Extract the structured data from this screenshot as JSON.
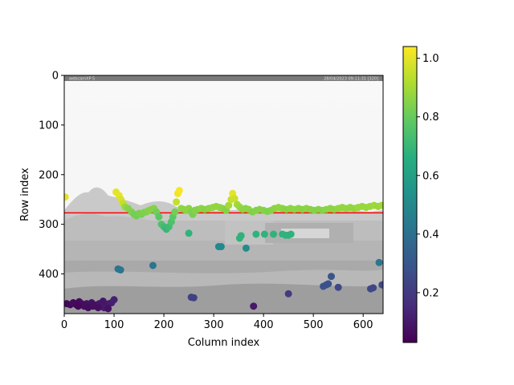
{
  "chart_data": {
    "type": "scatter",
    "xlabel": "Column index",
    "ylabel": "Row index",
    "xlim": [
      0,
      640
    ],
    "ylim": [
      480,
      0
    ],
    "x_ticks": [
      0,
      100,
      200,
      300,
      400,
      500,
      600
    ],
    "y_ticks": [
      0,
      100,
      200,
      300,
      400
    ],
    "colorbar": {
      "min": 0.03,
      "max": 1.04,
      "ticks": [
        0.2,
        0.4,
        0.6,
        0.8,
        1.0
      ],
      "colormap": "viridis"
    },
    "horizontal_line": {
      "y": 277,
      "color": "#ff0000"
    },
    "background_image": {
      "top_left_text": "webcamXP 5",
      "top_right_text": "28/04/2023 09:11:31  [320]"
    },
    "points": [
      [
        2,
        245,
        1.0
      ],
      [
        104,
        235,
        1.0
      ],
      [
        110,
        242,
        1.0
      ],
      [
        114,
        250,
        0.98
      ],
      [
        118,
        258,
        0.95
      ],
      [
        122,
        265,
        0.88
      ],
      [
        128,
        268,
        0.85
      ],
      [
        135,
        275,
        0.84
      ],
      [
        140,
        280,
        0.82
      ],
      [
        145,
        283,
        0.82
      ],
      [
        150,
        278,
        0.83
      ],
      [
        155,
        280,
        0.83
      ],
      [
        160,
        276,
        0.84
      ],
      [
        165,
        275,
        0.84
      ],
      [
        170,
        272,
        0.85
      ],
      [
        175,
        270,
        0.85
      ],
      [
        180,
        268,
        0.85
      ],
      [
        185,
        275,
        0.82
      ],
      [
        190,
        285,
        0.78
      ],
      [
        195,
        300,
        0.75
      ],
      [
        200,
        305,
        0.72
      ],
      [
        205,
        310,
        0.7
      ],
      [
        210,
        305,
        0.72
      ],
      [
        215,
        295,
        0.75
      ],
      [
        218,
        285,
        0.78
      ],
      [
        222,
        275,
        0.82
      ],
      [
        225,
        255,
        0.95
      ],
      [
        228,
        238,
        1.02
      ],
      [
        231,
        232,
        1.03
      ],
      [
        235,
        268,
        0.87
      ],
      [
        240,
        270,
        0.86
      ],
      [
        245,
        272,
        0.86
      ],
      [
        250,
        268,
        0.86
      ],
      [
        255,
        275,
        0.84
      ],
      [
        258,
        280,
        0.83
      ],
      [
        262,
        272,
        0.85
      ],
      [
        268,
        270,
        0.85
      ],
      [
        275,
        268,
        0.86
      ],
      [
        282,
        270,
        0.85
      ],
      [
        290,
        268,
        0.86
      ],
      [
        298,
        266,
        0.87
      ],
      [
        305,
        264,
        0.87
      ],
      [
        312,
        266,
        0.87
      ],
      [
        318,
        268,
        0.86
      ],
      [
        325,
        272,
        0.85
      ],
      [
        330,
        262,
        0.9
      ],
      [
        335,
        250,
        0.95
      ],
      [
        338,
        238,
        1.0
      ],
      [
        342,
        248,
        0.96
      ],
      [
        347,
        260,
        0.9
      ],
      [
        352,
        265,
        0.88
      ],
      [
        358,
        270,
        0.86
      ],
      [
        364,
        268,
        0.86
      ],
      [
        370,
        270,
        0.86
      ],
      [
        378,
        275,
        0.84
      ],
      [
        385,
        272,
        0.85
      ],
      [
        392,
        270,
        0.85
      ],
      [
        400,
        272,
        0.85
      ],
      [
        408,
        274,
        0.84
      ],
      [
        415,
        272,
        0.85
      ],
      [
        422,
        268,
        0.86
      ],
      [
        430,
        266,
        0.87
      ],
      [
        438,
        268,
        0.86
      ],
      [
        446,
        270,
        0.85
      ],
      [
        454,
        268,
        0.86
      ],
      [
        462,
        270,
        0.86
      ],
      [
        470,
        268,
        0.86
      ],
      [
        478,
        270,
        0.85
      ],
      [
        486,
        268,
        0.86
      ],
      [
        494,
        270,
        0.85
      ],
      [
        502,
        272,
        0.85
      ],
      [
        510,
        270,
        0.85
      ],
      [
        518,
        272,
        0.85
      ],
      [
        526,
        270,
        0.86
      ],
      [
        534,
        268,
        0.86
      ],
      [
        542,
        270,
        0.86
      ],
      [
        550,
        268,
        0.87
      ],
      [
        558,
        266,
        0.87
      ],
      [
        566,
        268,
        0.87
      ],
      [
        574,
        266,
        0.87
      ],
      [
        582,
        268,
        0.87
      ],
      [
        590,
        266,
        0.88
      ],
      [
        598,
        264,
        0.88
      ],
      [
        606,
        266,
        0.88
      ],
      [
        614,
        264,
        0.88
      ],
      [
        622,
        262,
        0.89
      ],
      [
        630,
        264,
        0.88
      ],
      [
        637,
        262,
        0.89
      ],
      [
        250,
        318,
        0.68
      ],
      [
        352,
        328,
        0.68
      ],
      [
        355,
        323,
        0.68
      ],
      [
        385,
        320,
        0.68
      ],
      [
        402,
        320,
        0.68
      ],
      [
        420,
        320,
        0.68
      ],
      [
        438,
        320,
        0.68
      ],
      [
        444,
        322,
        0.68
      ],
      [
        450,
        322,
        0.68
      ],
      [
        455,
        320,
        0.68
      ],
      [
        310,
        345,
        0.5
      ],
      [
        315,
        345,
        0.5
      ],
      [
        365,
        348,
        0.52
      ],
      [
        108,
        390,
        0.42
      ],
      [
        113,
        392,
        0.42
      ],
      [
        178,
        383,
        0.42
      ],
      [
        632,
        377,
        0.42
      ],
      [
        255,
        447,
        0.22
      ],
      [
        260,
        448,
        0.22
      ],
      [
        380,
        465,
        0.1
      ],
      [
        450,
        440,
        0.2
      ],
      [
        520,
        425,
        0.28
      ],
      [
        526,
        422,
        0.28
      ],
      [
        530,
        420,
        0.28
      ],
      [
        536,
        405,
        0.3
      ],
      [
        550,
        427,
        0.25
      ],
      [
        615,
        430,
        0.25
      ],
      [
        620,
        428,
        0.25
      ],
      [
        638,
        422,
        0.25
      ],
      [
        5,
        460,
        0.05
      ],
      [
        12,
        462,
        0.05
      ],
      [
        18,
        458,
        0.06
      ],
      [
        24,
        462,
        0.06
      ],
      [
        30,
        456,
        0.06
      ],
      [
        35,
        460,
        0.07
      ],
      [
        40,
        465,
        0.07
      ],
      [
        45,
        460,
        0.07
      ],
      [
        50,
        462,
        0.08
      ],
      [
        55,
        458,
        0.08
      ],
      [
        60,
        462,
        0.08
      ],
      [
        65,
        465,
        0.09
      ],
      [
        70,
        460,
        0.09
      ],
      [
        75,
        462,
        0.09
      ],
      [
        80,
        468,
        0.1
      ],
      [
        85,
        465,
        0.1
      ],
      [
        90,
        460,
        0.1
      ],
      [
        95,
        458,
        0.11
      ],
      [
        100,
        452,
        0.12
      ],
      [
        28,
        465,
        0.05
      ],
      [
        48,
        468,
        0.06
      ],
      [
        68,
        468,
        0.07
      ],
      [
        88,
        470,
        0.08
      ],
      [
        78,
        455,
        0.09
      ],
      [
        58,
        465,
        0.07
      ]
    ]
  }
}
